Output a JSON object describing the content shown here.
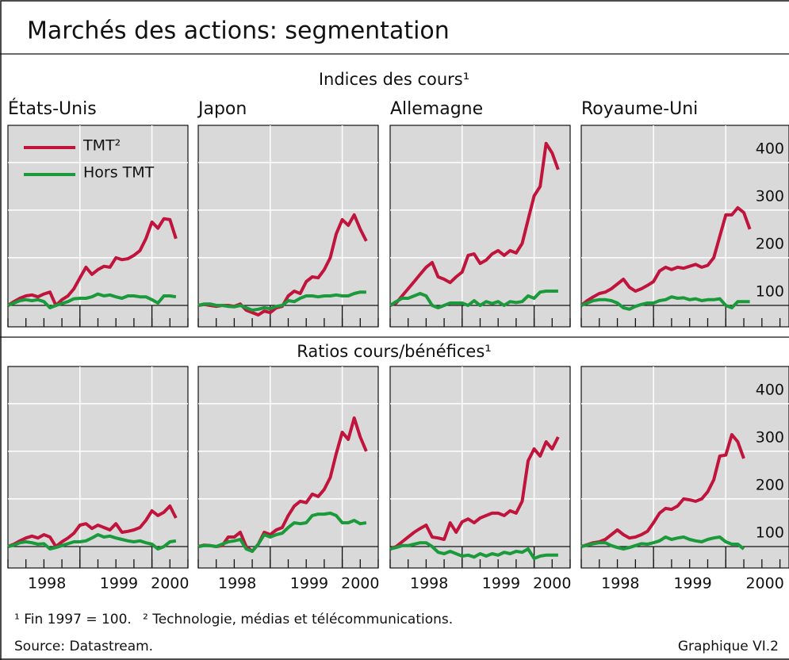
{
  "title": "Marchés des actions: segmentation",
  "sections": [
    "Indices des cours¹",
    "Ratios cours/bénéfices¹"
  ],
  "footnotes": [
    "¹ Fin 1997 = 100.",
    "² Technologie, médias et télécommunications."
  ],
  "source": "Source: Datastream.",
  "figure_label": "Graphique VI.2",
  "chart_data": [
    {
      "type": "line",
      "title": "États-Unis",
      "legend": "upper left",
      "grid": true,
      "xlim": [
        0,
        30
      ],
      "ylim": [
        55,
        478
      ],
      "yticks": [
        100,
        200,
        300,
        400
      ],
      "xticks": [
        0,
        3,
        6,
        9,
        12,
        15,
        18,
        21,
        24,
        27,
        30
      ],
      "year_ticks": [
        12,
        24
      ],
      "x": [
        0,
        1,
        2,
        3,
        4,
        5,
        6,
        7,
        8,
        9,
        10,
        11,
        12,
        13,
        14,
        15,
        16,
        17,
        18,
        19,
        20,
        21,
        22,
        23,
        24,
        25,
        26,
        27,
        28
      ],
      "series": [
        {
          "name": "TMT²",
          "color": "#c0143c",
          "values": [
            100,
            108,
            115,
            120,
            122,
            118,
            124,
            128,
            100,
            112,
            120,
            135,
            158,
            180,
            165,
            175,
            182,
            180,
            200,
            196,
            198,
            205,
            215,
            240,
            275,
            262,
            282,
            280,
            240
          ]
        },
        {
          "name": "Hors TMT",
          "color": "#1a9a3a",
          "values": [
            100,
            105,
            110,
            112,
            110,
            112,
            108,
            95,
            100,
            104,
            108,
            114,
            115,
            115,
            118,
            124,
            120,
            122,
            118,
            115,
            120,
            120,
            118,
            118,
            112,
            105,
            120,
            120,
            118
          ]
        }
      ]
    },
    {
      "type": "line",
      "title": "Japon",
      "grid": true,
      "xlim": [
        0,
        30
      ],
      "ylim": [
        55,
        478
      ],
      "yticks": [
        100,
        200,
        300,
        400
      ],
      "xticks": [
        0,
        3,
        6,
        9,
        12,
        15,
        18,
        21,
        24,
        27,
        30
      ],
      "year_ticks": [
        12,
        24
      ],
      "x": [
        0,
        1,
        2,
        3,
        4,
        5,
        6,
        7,
        8,
        9,
        10,
        11,
        12,
        13,
        14,
        15,
        16,
        17,
        18,
        19,
        20,
        21,
        22,
        23,
        24,
        25,
        26,
        27,
        28
      ],
      "series": [
        {
          "color": "#c0143c",
          "values": [
            100,
            102,
            100,
            98,
            100,
            100,
            98,
            103,
            90,
            85,
            80,
            88,
            85,
            95,
            98,
            120,
            130,
            125,
            150,
            160,
            158,
            175,
            200,
            250,
            280,
            268,
            290,
            260,
            235
          ]
        },
        {
          "color": "#1a9a3a",
          "values": [
            100,
            103,
            103,
            100,
            100,
            98,
            97,
            100,
            95,
            90,
            92,
            95,
            93,
            98,
            100,
            110,
            108,
            115,
            120,
            120,
            118,
            120,
            120,
            122,
            120,
            120,
            125,
            128,
            128
          ]
        }
      ]
    },
    {
      "type": "line",
      "title": "Allemagne",
      "grid": true,
      "xlim": [
        0,
        30
      ],
      "ylim": [
        55,
        478
      ],
      "yticks": [
        100,
        200,
        300,
        400
      ],
      "xticks": [
        0,
        3,
        6,
        9,
        12,
        15,
        18,
        21,
        24,
        27,
        30
      ],
      "year_ticks": [
        12,
        24
      ],
      "x": [
        0,
        1,
        2,
        3,
        4,
        5,
        6,
        7,
        8,
        9,
        10,
        11,
        12,
        13,
        14,
        15,
        16,
        17,
        18,
        19,
        20,
        21,
        22,
        23,
        24,
        25,
        26,
        27,
        28
      ],
      "series": [
        {
          "color": "#c0143c",
          "values": [
            100,
            105,
            120,
            135,
            150,
            165,
            180,
            190,
            160,
            155,
            148,
            160,
            170,
            205,
            208,
            188,
            195,
            208,
            215,
            205,
            215,
            210,
            230,
            280,
            330,
            350,
            440,
            420,
            385
          ]
        },
        {
          "color": "#1a9a3a",
          "values": [
            100,
            108,
            115,
            115,
            120,
            125,
            120,
            100,
            95,
            100,
            105,
            105,
            105,
            100,
            110,
            100,
            108,
            104,
            108,
            100,
            108,
            106,
            108,
            120,
            115,
            128,
            130,
            130,
            130
          ]
        }
      ]
    },
    {
      "type": "line",
      "title": "Royaume-Uni",
      "y_axis": "right",
      "grid": true,
      "xlim": [
        0,
        34.5
      ],
      "ylim": [
        55,
        478
      ],
      "yticks": [
        100,
        200,
        300,
        400
      ],
      "xticks": [
        0,
        3,
        6,
        9,
        12,
        15,
        18,
        21,
        24,
        27,
        30,
        33
      ],
      "year_ticks": [
        12,
        24
      ],
      "x": [
        0,
        1,
        2,
        3,
        4,
        5,
        6,
        7,
        8,
        9,
        10,
        11,
        12,
        13,
        14,
        15,
        16,
        17,
        18,
        19,
        20,
        21,
        22,
        23,
        24,
        25,
        26,
        27,
        28
      ],
      "series": [
        {
          "color": "#c0143c",
          "values": [
            100,
            110,
            118,
            125,
            128,
            135,
            145,
            155,
            138,
            130,
            135,
            142,
            150,
            172,
            180,
            175,
            180,
            178,
            182,
            186,
            180,
            184,
            200,
            245,
            290,
            290,
            305,
            295,
            260
          ]
        },
        {
          "color": "#1a9a3a",
          "values": [
            100,
            105,
            110,
            112,
            112,
            110,
            105,
            95,
            92,
            98,
            102,
            105,
            105,
            110,
            112,
            118,
            115,
            116,
            112,
            114,
            110,
            112,
            112,
            114,
            100,
            95,
            108,
            108,
            108
          ]
        }
      ]
    },
    {
      "type": "line",
      "grid": true,
      "xlim": [
        0,
        30
      ],
      "ylim": [
        55,
        478
      ],
      "yticks": [
        100,
        200,
        300,
        400
      ],
      "xticks": [
        0,
        3,
        6,
        9,
        12,
        15,
        18,
        21,
        24,
        27,
        30
      ],
      "year_ticks": [
        12,
        24
      ],
      "year_labels": [
        {
          "value": 6.5,
          "label": "1998"
        },
        {
          "value": 18.5,
          "label": "1999"
        },
        {
          "value": 27,
          "label": "2000"
        }
      ],
      "x": [
        0,
        1,
        2,
        3,
        4,
        5,
        6,
        7,
        8,
        9,
        10,
        11,
        12,
        13,
        14,
        15,
        16,
        17,
        18,
        19,
        20,
        21,
        22,
        23,
        24,
        25,
        26,
        27,
        28
      ],
      "series": [
        {
          "color": "#c0143c",
          "values": [
            100,
            105,
            112,
            118,
            122,
            118,
            125,
            120,
            100,
            110,
            118,
            128,
            145,
            148,
            138,
            145,
            140,
            135,
            148,
            130,
            132,
            135,
            140,
            155,
            175,
            165,
            172,
            185,
            160
          ]
        },
        {
          "color": "#1a9a3a",
          "values": [
            100,
            103,
            108,
            110,
            108,
            105,
            106,
            95,
            98,
            102,
            106,
            110,
            110,
            112,
            118,
            125,
            120,
            122,
            118,
            115,
            112,
            110,
            112,
            108,
            105,
            95,
            100,
            110,
            112
          ]
        }
      ]
    },
    {
      "type": "line",
      "grid": true,
      "xlim": [
        0,
        30
      ],
      "ylim": [
        55,
        478
      ],
      "yticks": [
        100,
        200,
        300,
        400
      ],
      "xticks": [
        0,
        3,
        6,
        9,
        12,
        15,
        18,
        21,
        24,
        27,
        30
      ],
      "year_ticks": [
        12,
        24
      ],
      "year_labels": [
        {
          "value": 6.5,
          "label": "1998"
        },
        {
          "value": 18.5,
          "label": "1999"
        },
        {
          "value": 27,
          "label": "2000"
        }
      ],
      "x": [
        0,
        1,
        2,
        3,
        4,
        5,
        6,
        7,
        8,
        9,
        10,
        11,
        12,
        13,
        14,
        15,
        16,
        17,
        18,
        19,
        20,
        21,
        22,
        23,
        24,
        25,
        26,
        27,
        28
      ],
      "series": [
        {
          "color": "#c0143c",
          "values": [
            100,
            103,
            102,
            100,
            102,
            120,
            120,
            130,
            100,
            90,
            105,
            130,
            125,
            135,
            140,
            165,
            185,
            195,
            192,
            210,
            205,
            220,
            245,
            295,
            340,
            325,
            370,
            330,
            300
          ]
        },
        {
          "color": "#1a9a3a",
          "values": [
            100,
            102,
            102,
            100,
            105,
            110,
            112,
            115,
            95,
            90,
            105,
            125,
            120,
            125,
            128,
            140,
            150,
            148,
            150,
            165,
            168,
            168,
            170,
            165,
            150,
            150,
            155,
            148,
            150
          ]
        }
      ]
    },
    {
      "type": "line",
      "grid": true,
      "xlim": [
        0,
        30
      ],
      "ylim": [
        55,
        478
      ],
      "yticks": [
        100,
        200,
        300,
        400
      ],
      "xticks": [
        0,
        3,
        6,
        9,
        12,
        15,
        18,
        21,
        24,
        27,
        30
      ],
      "year_ticks": [
        12,
        24
      ],
      "year_labels": [
        {
          "value": 6.5,
          "label": "1998"
        },
        {
          "value": 18.5,
          "label": "1999"
        },
        {
          "value": 27,
          "label": "2000"
        }
      ],
      "x": [
        0,
        1,
        2,
        3,
        4,
        5,
        6,
        7,
        8,
        9,
        10,
        11,
        12,
        13,
        14,
        15,
        16,
        17,
        18,
        19,
        20,
        21,
        22,
        23,
        24,
        25,
        26,
        27,
        28
      ],
      "series": [
        {
          "color": "#c0143c",
          "values": [
            95,
            100,
            110,
            120,
            130,
            138,
            145,
            120,
            118,
            115,
            150,
            130,
            152,
            158,
            150,
            160,
            165,
            170,
            170,
            165,
            175,
            170,
            195,
            280,
            305,
            290,
            320,
            305,
            330
          ]
        },
        {
          "color": "#1a9a3a",
          "values": [
            95,
            98,
            102,
            102,
            105,
            108,
            108,
            100,
            88,
            85,
            90,
            85,
            80,
            82,
            78,
            85,
            80,
            85,
            82,
            88,
            85,
            90,
            88,
            95,
            75,
            80,
            82,
            82,
            82
          ]
        }
      ]
    },
    {
      "type": "line",
      "y_axis": "right",
      "grid": true,
      "xlim": [
        0,
        34.5
      ],
      "ylim": [
        55,
        478
      ],
      "yticks": [
        100,
        200,
        300,
        400
      ],
      "xticks": [
        0,
        3,
        6,
        9,
        12,
        15,
        18,
        21,
        24,
        27,
        30,
        33
      ],
      "year_ticks": [
        12,
        24
      ],
      "year_labels": [
        {
          "value": 6.5,
          "label": "1998"
        },
        {
          "value": 18.5,
          "label": "1999"
        },
        {
          "value": 30.5,
          "label": "2000"
        }
      ],
      "x": [
        0,
        1,
        2,
        3,
        4,
        5,
        6,
        7,
        8,
        9,
        10,
        11,
        12,
        13,
        14,
        15,
        16,
        17,
        18,
        19,
        20,
        21,
        22,
        23,
        24,
        25,
        26,
        27
      ],
      "series": [
        {
          "color": "#c0143c",
          "values": [
            100,
            104,
            108,
            110,
            115,
            125,
            135,
            125,
            118,
            120,
            125,
            132,
            150,
            170,
            180,
            178,
            185,
            200,
            198,
            195,
            200,
            215,
            240,
            290,
            292,
            335,
            320,
            285
          ]
        },
        {
          "color": "#1a9a3a",
          "values": [
            100,
            103,
            106,
            108,
            108,
            102,
            98,
            95,
            98,
            102,
            106,
            105,
            108,
            112,
            120,
            115,
            118,
            120,
            115,
            112,
            110,
            115,
            118,
            120,
            110,
            105,
            105,
            95
          ]
        }
      ]
    }
  ]
}
